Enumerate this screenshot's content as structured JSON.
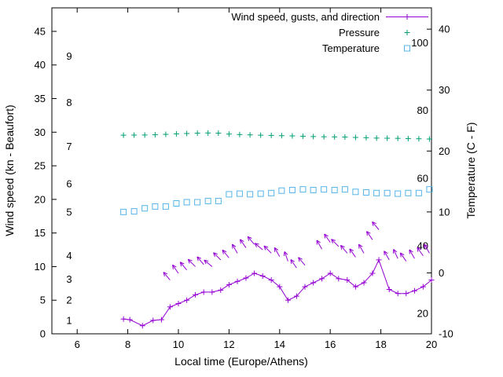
{
  "chart_data": {
    "type": "line",
    "title": "",
    "xlabel": "Local time (Europe/Athens)",
    "ylabel_left": "Wind speed (kn - Beaufort)",
    "ylabel_right": "Temperature (C - F)",
    "xlim": [
      5,
      20
    ],
    "x_ticks": [
      6,
      8,
      10,
      12,
      14,
      16,
      18,
      20
    ],
    "left_ylim": [
      0,
      48.5
    ],
    "left_yticks": [
      0,
      5,
      10,
      15,
      20,
      25,
      30,
      35,
      40,
      45
    ],
    "right_ylim": [
      -10,
      43.5
    ],
    "right_yticks": [
      -10,
      0,
      10,
      20,
      30,
      40
    ],
    "beaufort_labels": [
      {
        "label": "1",
        "kn": 2.0
      },
      {
        "label": "2",
        "kn": 5.0
      },
      {
        "label": "3",
        "kn": 8.1
      },
      {
        "label": "4",
        "kn": 11.6
      },
      {
        "label": "5",
        "kn": 18.1
      },
      {
        "label": "6",
        "kn": 22.3
      },
      {
        "label": "7",
        "kn": 27.9
      },
      {
        "label": "8",
        "kn": 34.4
      },
      {
        "label": "9",
        "kn": 41.3
      }
    ],
    "fahrenheit_labels": [
      {
        "label": "20",
        "f": 20
      },
      {
        "label": "40",
        "f": 40
      },
      {
        "label": "60",
        "f": 60
      },
      {
        "label": "80",
        "f": 80
      },
      {
        "label": "100",
        "f": 100
      }
    ],
    "colors": {
      "wind": "#9400d3",
      "pressure": "#009e73",
      "temperature": "#56b4e9",
      "axis": "#000000"
    },
    "legend": {
      "position": "top-right",
      "items": [
        {
          "label": "Wind speed, gusts, and direction",
          "style": "line+cross",
          "color_key": "wind"
        },
        {
          "label": "Pressure",
          "style": "cross",
          "color_key": "pressure"
        },
        {
          "label": "Temperature",
          "style": "square",
          "color_key": "temperature"
        }
      ]
    },
    "series": [
      {
        "name": "Wind speed",
        "style": "line+cross",
        "axis": "left",
        "color_key": "wind",
        "points": [
          [
            7.83,
            2.2
          ],
          [
            8.08,
            2.1
          ],
          [
            8.58,
            1.2
          ],
          [
            9.0,
            2.0
          ],
          [
            9.33,
            2.1
          ],
          [
            9.67,
            4.0
          ],
          [
            10.0,
            4.5
          ],
          [
            10.33,
            5.0
          ],
          [
            10.67,
            5.8
          ],
          [
            11.0,
            6.2
          ],
          [
            11.33,
            6.2
          ],
          [
            11.67,
            6.5
          ],
          [
            12.0,
            7.3
          ],
          [
            12.33,
            7.8
          ],
          [
            12.67,
            8.3
          ],
          [
            13.0,
            9.0
          ],
          [
            13.33,
            8.6
          ],
          [
            13.67,
            8.0
          ],
          [
            14.0,
            7.0
          ],
          [
            14.33,
            5.0
          ],
          [
            14.67,
            5.6
          ],
          [
            15.0,
            7.0
          ],
          [
            15.33,
            7.6
          ],
          [
            15.67,
            8.2
          ],
          [
            16.0,
            9.0
          ],
          [
            16.33,
            8.2
          ],
          [
            16.67,
            8.0
          ],
          [
            17.0,
            7.0
          ],
          [
            17.33,
            7.6
          ],
          [
            17.67,
            9.0
          ],
          [
            17.92,
            11.0
          ],
          [
            18.33,
            6.6
          ],
          [
            18.67,
            6.0
          ],
          [
            19.0,
            6.0
          ],
          [
            19.33,
            6.4
          ],
          [
            19.67,
            7.0
          ],
          [
            20.0,
            8.0
          ]
        ]
      },
      {
        "name": "Wind gusts and direction",
        "style": "arrow",
        "axis": "left",
        "color_key": "wind",
        "points": [
          [
            9.67,
            8.0,
            130
          ],
          [
            10.0,
            9.0,
            125
          ],
          [
            10.33,
            9.5,
            130
          ],
          [
            10.67,
            10.0,
            135
          ],
          [
            11.0,
            10.3,
            130
          ],
          [
            11.33,
            10.0,
            140
          ],
          [
            11.67,
            11.0,
            135
          ],
          [
            12.0,
            11.3,
            130
          ],
          [
            12.33,
            12.0,
            120
          ],
          [
            12.67,
            12.8,
            125
          ],
          [
            13.0,
            13.3,
            130
          ],
          [
            13.33,
            12.5,
            140
          ],
          [
            13.67,
            12.0,
            135
          ],
          [
            14.0,
            11.5,
            120
          ],
          [
            14.33,
            10.8,
            110
          ],
          [
            14.67,
            9.8,
            125
          ],
          [
            15.0,
            10.2,
            130
          ],
          [
            15.67,
            12.6,
            120
          ],
          [
            16.0,
            13.6,
            125
          ],
          [
            16.33,
            13.0,
            135
          ],
          [
            16.67,
            12.0,
            130
          ],
          [
            17.0,
            11.4,
            125
          ],
          [
            17.33,
            12.0,
            120
          ],
          [
            17.67,
            14.0,
            125
          ],
          [
            17.92,
            15.5,
            130
          ],
          [
            18.33,
            11.0,
            120
          ],
          [
            18.67,
            11.2,
            115
          ],
          [
            19.0,
            10.8,
            125
          ],
          [
            19.33,
            11.2,
            120
          ],
          [
            19.67,
            11.6,
            125
          ],
          [
            19.92,
            12.0,
            120
          ]
        ]
      },
      {
        "name": "Pressure",
        "style": "cross",
        "axis": "left",
        "color_key": "pressure",
        "points": [
          [
            7.83,
            29.55
          ],
          [
            8.25,
            29.57
          ],
          [
            8.67,
            29.58
          ],
          [
            9.08,
            29.62
          ],
          [
            9.5,
            29.68
          ],
          [
            9.92,
            29.75
          ],
          [
            10.33,
            29.8
          ],
          [
            10.75,
            29.85
          ],
          [
            11.17,
            29.88
          ],
          [
            11.58,
            29.85
          ],
          [
            12.0,
            29.72
          ],
          [
            12.42,
            29.65
          ],
          [
            12.83,
            29.6
          ],
          [
            13.25,
            29.55
          ],
          [
            13.67,
            29.52
          ],
          [
            14.08,
            29.48
          ],
          [
            14.5,
            29.45
          ],
          [
            14.92,
            29.4
          ],
          [
            15.33,
            29.35
          ],
          [
            15.75,
            29.32
          ],
          [
            16.17,
            29.3
          ],
          [
            16.58,
            29.28
          ],
          [
            17.0,
            29.22
          ],
          [
            17.42,
            29.18
          ],
          [
            17.83,
            29.12
          ],
          [
            18.25,
            29.1
          ],
          [
            18.67,
            29.08
          ],
          [
            19.08,
            29.05
          ],
          [
            19.5,
            29.02
          ],
          [
            19.92,
            28.98
          ]
        ]
      },
      {
        "name": "Temperature",
        "style": "square",
        "axis": "right",
        "color_key": "temperature",
        "points": [
          [
            7.83,
            10.0
          ],
          [
            8.25,
            10.1
          ],
          [
            8.67,
            10.6
          ],
          [
            9.08,
            10.9
          ],
          [
            9.5,
            10.9
          ],
          [
            9.92,
            11.4
          ],
          [
            10.33,
            11.6
          ],
          [
            10.75,
            11.6
          ],
          [
            11.17,
            11.8
          ],
          [
            11.58,
            11.8
          ],
          [
            12.0,
            12.9
          ],
          [
            12.42,
            13.0
          ],
          [
            12.83,
            12.9
          ],
          [
            13.25,
            13.0
          ],
          [
            13.67,
            13.1
          ],
          [
            14.08,
            13.5
          ],
          [
            14.5,
            13.6
          ],
          [
            14.92,
            13.7
          ],
          [
            15.33,
            13.6
          ],
          [
            15.75,
            13.7
          ],
          [
            16.17,
            13.6
          ],
          [
            16.58,
            13.7
          ],
          [
            17.0,
            13.3
          ],
          [
            17.42,
            13.2
          ],
          [
            17.83,
            13.1
          ],
          [
            18.25,
            13.1
          ],
          [
            18.67,
            13.0
          ],
          [
            19.08,
            13.1
          ],
          [
            19.5,
            13.1
          ],
          [
            19.92,
            13.7
          ]
        ]
      }
    ]
  }
}
